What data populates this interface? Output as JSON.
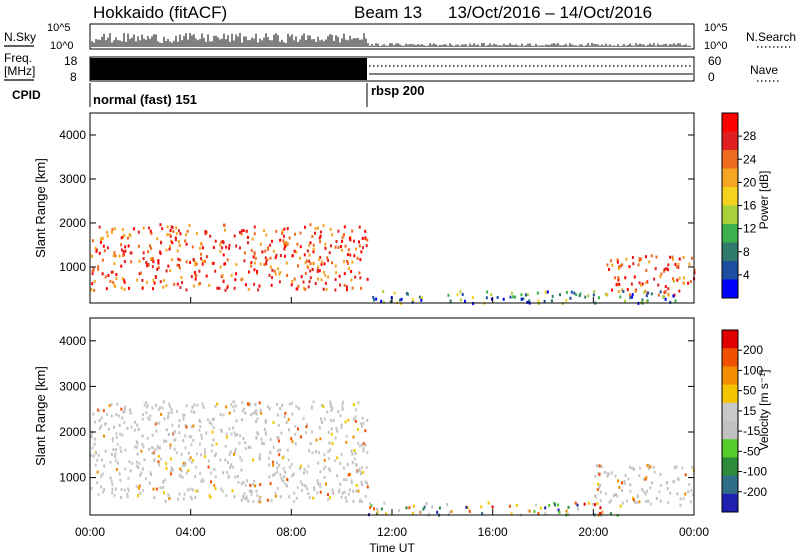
{
  "header": {
    "station": "Hokkaido (fitACF)",
    "beam": "Beam 13",
    "date_range": "13/Oct/2016 – 14/Oct/2016"
  },
  "noise_panel": {
    "left_label": "N.Sky",
    "right_label": "N.Search",
    "left_ticks": [
      "10^5",
      "10^0"
    ],
    "right_ticks": [
      "10^5",
      "10^0"
    ]
  },
  "freq_panel": {
    "left_label_1": "Freq.",
    "left_label_2": "[MHz]",
    "right_label": "Nave",
    "left_ticks": [
      "18",
      "8"
    ],
    "right_ticks": [
      "60",
      "0"
    ]
  },
  "cpid_panel": {
    "label": "CPID",
    "modes": [
      {
        "name": "normal (fast) 151",
        "start_hour": 0,
        "end_hour": 11.05
      },
      {
        "name": "rbsp 200",
        "start_hour": 11.05,
        "end_hour": 24
      }
    ]
  },
  "time_axis": {
    "label": "Time UT",
    "tick_labels": [
      "00:00",
      "04:00",
      "08:00",
      "12:00",
      "16:00",
      "20:00",
      "00:00"
    ]
  },
  "power_colorbar": {
    "label": "Power [dB]",
    "tick_labels": [
      "28",
      "24",
      "20",
      "16",
      "12",
      "8",
      "4"
    ]
  },
  "velocity_colorbar": {
    "label": "Velocity [m s⁻¹]",
    "tick_labels": [
      "200",
      "100",
      "50",
      "15",
      "-15",
      "-50",
      "-100",
      "-200"
    ]
  },
  "chart_data": [
    {
      "type": "heatmap",
      "title": "",
      "xlabel": "Time UT",
      "ylabel": "Slant Range [km]",
      "ylim": [
        180,
        4500
      ],
      "xlim": [
        0,
        24
      ],
      "y_tick_labels": [
        "1000",
        "2000",
        "3000",
        "4000"
      ],
      "colorbar": "Power [dB]",
      "colors": [
        "#0000ff",
        "#1d4fa0",
        "#2f7a6a",
        "#3cb04c",
        "#a8d23c",
        "#f5d21e",
        "#f5a623",
        "#ee6a1e",
        "#e02020",
        "#ff0000"
      ],
      "regions": [
        {
          "x": [
            0,
            11
          ],
          "y": [
            500,
            2000
          ],
          "level": "high"
        },
        {
          "x": [
            20.5,
            24
          ],
          "y": [
            380,
            1300
          ],
          "level": "high"
        },
        {
          "x": [
            11,
            23.5
          ],
          "y": [
            200,
            480
          ],
          "level": "low"
        }
      ]
    },
    {
      "type": "heatmap",
      "title": "",
      "xlabel": "Time UT",
      "ylabel": "Slant Range [km]",
      "ylim": [
        180,
        4500
      ],
      "xlim": [
        0,
        24
      ],
      "y_tick_labels": [
        "1000",
        "2000",
        "3000",
        "4000"
      ],
      "colorbar": "Velocity [m s⁻¹]",
      "colors": [
        "#2020b0",
        "#2f6e86",
        "#2e8b3c",
        "#55cc2a",
        "#c0c0c0",
        "#c8c8c8",
        "#f5c400",
        "#f28c00",
        "#f05000",
        "#e00000"
      ],
      "regions": [
        {
          "x": [
            0,
            11
          ],
          "y": [
            500,
            2700
          ],
          "level": "near-zero"
        },
        {
          "x": [
            20,
            24
          ],
          "y": [
            400,
            1300
          ],
          "level": "near-zero"
        },
        {
          "x": [
            11,
            21
          ],
          "y": [
            200,
            480
          ],
          "level": "mixed"
        }
      ]
    }
  ]
}
